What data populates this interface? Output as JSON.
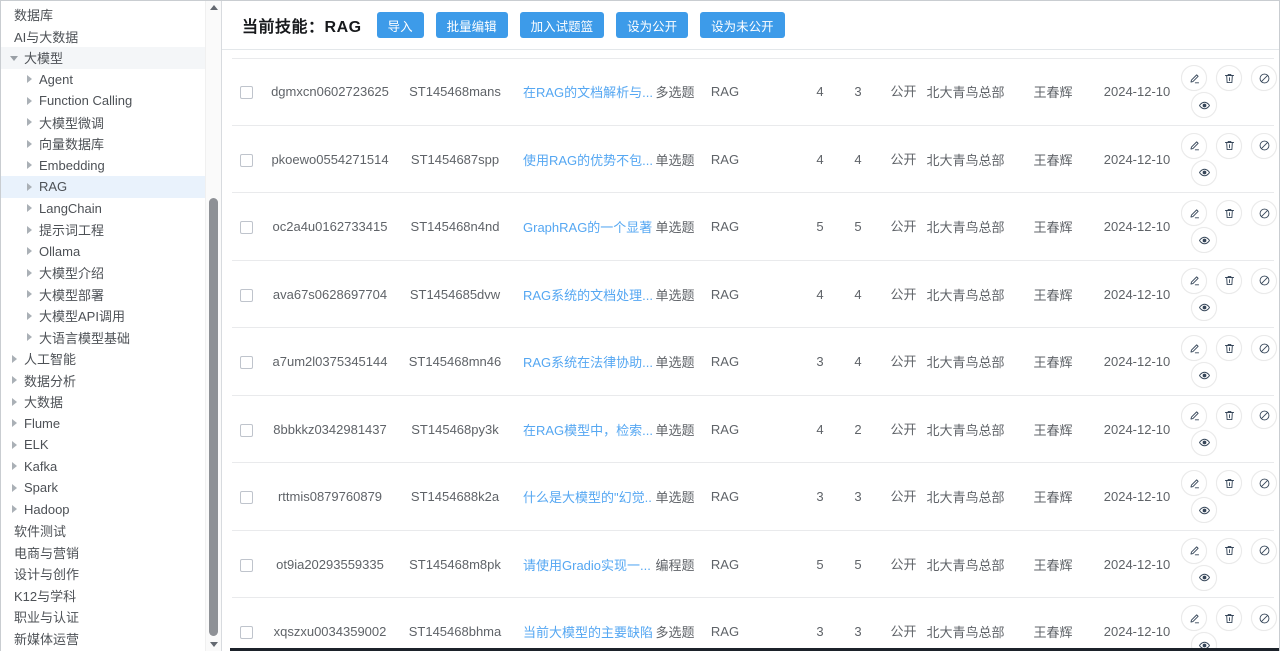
{
  "header": {
    "title_label": "当前技能：",
    "skill": "RAG",
    "buttons": [
      "导入",
      "批量编辑",
      "加入试题篮",
      "设为公开",
      "设为未公开"
    ]
  },
  "sidebar": {
    "items": [
      {
        "label": "数据库",
        "level": 0,
        "arrow": null
      },
      {
        "label": "AI与大数据",
        "level": 0,
        "arrow": null
      },
      {
        "label": "大模型",
        "level": 1,
        "arrow": "down",
        "open": true
      },
      {
        "label": "Agent",
        "level": 2,
        "arrow": "right"
      },
      {
        "label": "Function Calling",
        "level": 2,
        "arrow": "right"
      },
      {
        "label": "大模型微调",
        "level": 2,
        "arrow": "right"
      },
      {
        "label": "向量数据库",
        "level": 2,
        "arrow": "right"
      },
      {
        "label": "Embedding",
        "level": 2,
        "arrow": "right"
      },
      {
        "label": "RAG",
        "level": 2,
        "arrow": "right",
        "selected": true
      },
      {
        "label": "LangChain",
        "level": 2,
        "arrow": "right"
      },
      {
        "label": "提示词工程",
        "level": 2,
        "arrow": "right"
      },
      {
        "label": "Ollama",
        "level": 2,
        "arrow": "right"
      },
      {
        "label": "大模型介绍",
        "level": 2,
        "arrow": "right"
      },
      {
        "label": "大模型部署",
        "level": 2,
        "arrow": "right"
      },
      {
        "label": "大模型API调用",
        "level": 2,
        "arrow": "right"
      },
      {
        "label": "大语言模型基础",
        "level": 2,
        "arrow": "right"
      },
      {
        "label": "人工智能",
        "level": 1,
        "arrow": "right"
      },
      {
        "label": "数据分析",
        "level": 1,
        "arrow": "right"
      },
      {
        "label": "大数据",
        "level": 1,
        "arrow": "right"
      },
      {
        "label": "Flume",
        "level": 1,
        "arrow": "right"
      },
      {
        "label": "ELK",
        "level": 1,
        "arrow": "right"
      },
      {
        "label": "Kafka",
        "level": 1,
        "arrow": "right"
      },
      {
        "label": "Spark",
        "level": 1,
        "arrow": "right"
      },
      {
        "label": "Hadoop",
        "level": 1,
        "arrow": "right"
      },
      {
        "label": "软件测试",
        "level": 0,
        "arrow": null
      },
      {
        "label": "电商与营销",
        "level": 0,
        "arrow": null
      },
      {
        "label": "设计与创作",
        "level": 0,
        "arrow": null
      },
      {
        "label": "K12与学科",
        "level": 0,
        "arrow": null
      },
      {
        "label": "职业与认证",
        "level": 0,
        "arrow": null
      },
      {
        "label": "新媒体运营",
        "level": 0,
        "arrow": null
      }
    ]
  },
  "table": {
    "row_actions": [
      "edit",
      "delete",
      "ban",
      "view"
    ],
    "rows": [
      {
        "id": "dgmxcn0602723625",
        "code": "ST145468mans",
        "title": "在RAG的文档解析与...",
        "type": "多选题",
        "skill": "RAG",
        "num1": "4",
        "num2": "3",
        "status": "公开",
        "org": "北大青鸟总部",
        "author": "王春辉",
        "date": "2024-12-10"
      },
      {
        "id": "pkoewo0554271514",
        "code": "ST1454687spp",
        "title": "使用RAG的优势不包...",
        "type": "单选题",
        "skill": "RAG",
        "num1": "4",
        "num2": "4",
        "status": "公开",
        "org": "北大青鸟总部",
        "author": "王春辉",
        "date": "2024-12-10"
      },
      {
        "id": "oc2a4u0162733415",
        "code": "ST145468n4nd",
        "title": "GraphRAG的一个显著...",
        "type": "单选题",
        "skill": "RAG",
        "num1": "5",
        "num2": "5",
        "status": "公开",
        "org": "北大青鸟总部",
        "author": "王春辉",
        "date": "2024-12-10"
      },
      {
        "id": "ava67s0628697704",
        "code": "ST1454685dvw",
        "title": "RAG系统的文档处理...",
        "type": "单选题",
        "skill": "RAG",
        "num1": "4",
        "num2": "4",
        "status": "公开",
        "org": "北大青鸟总部",
        "author": "王春辉",
        "date": "2024-12-10"
      },
      {
        "id": "a7um2l0375345144",
        "code": "ST145468mn46",
        "title": "RAG系统在法律协助...",
        "type": "单选题",
        "skill": "RAG",
        "num1": "3",
        "num2": "4",
        "status": "公开",
        "org": "北大青鸟总部",
        "author": "王春辉",
        "date": "2024-12-10"
      },
      {
        "id": "8bbkkz0342981437",
        "code": "ST145468py3k",
        "title": "在RAG模型中，检索...",
        "type": "单选题",
        "skill": "RAG",
        "num1": "4",
        "num2": "2",
        "status": "公开",
        "org": "北大青鸟总部",
        "author": "王春辉",
        "date": "2024-12-10"
      },
      {
        "id": "rttmis0879760879",
        "code": "ST1454688k2a",
        "title": "什么是大模型的\"幻觉...",
        "type": "单选题",
        "skill": "RAG",
        "num1": "3",
        "num2": "3",
        "status": "公开",
        "org": "北大青鸟总部",
        "author": "王春辉",
        "date": "2024-12-10"
      },
      {
        "id": "ot9ia20293559335",
        "code": "ST145468m8pk",
        "title": "请使用Gradio实现一...",
        "type": "编程题",
        "skill": "RAG",
        "num1": "5",
        "num2": "5",
        "status": "公开",
        "org": "北大青鸟总部",
        "author": "王春辉",
        "date": "2024-12-10"
      },
      {
        "id": "xqszxu0034359002",
        "code": "ST145468bhma",
        "title": "当前大模型的主要缺陷...",
        "type": "多选题",
        "skill": "RAG",
        "num1": "3",
        "num2": "3",
        "status": "公开",
        "org": "北大青鸟总部",
        "author": "王春辉",
        "date": "2024-12-10"
      }
    ]
  },
  "colors": {
    "primary_button": "#3d9be9",
    "link": "#55a7f2",
    "selected_item_bg": "#e9f2fc",
    "row_divider": "#e9eaec",
    "bottom_bar": "#1c222a"
  }
}
